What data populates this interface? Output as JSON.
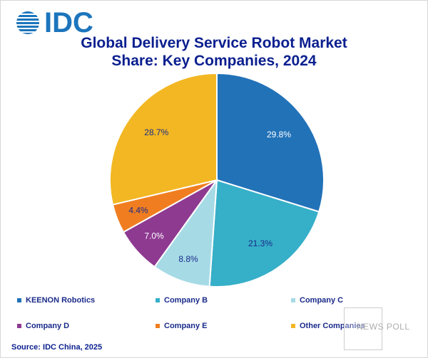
{
  "logo": {
    "text": "IDC"
  },
  "chart_data": {
    "type": "pie",
    "title_lines": [
      "Global Delivery Service Robot Market",
      "Share: Key Companies, 2024"
    ],
    "categories": [
      "KEENON Robotics",
      "Company B",
      "Company C",
      "Company D",
      "Company E",
      "Other Companies"
    ],
    "values": [
      29.8,
      21.3,
      8.8,
      7.0,
      4.4,
      28.7
    ],
    "labels": [
      "29.8%",
      "21.3%",
      "8.8%",
      "7.0%",
      "4.4%",
      "28.7%"
    ],
    "colors": [
      "#2272b8",
      "#36afc8",
      "#a6dbe6",
      "#8e3a91",
      "#f07e20",
      "#f2b722"
    ],
    "label_colors": [
      "#ffffff",
      "#1a2a8a",
      "#1a2a8a",
      "#ffffff",
      "#1a2a8a",
      "#1a2a8a"
    ],
    "start_angle": "top",
    "direction": "clockwise",
    "legend_position": "bottom"
  },
  "source": "Source: IDC China, 2025",
  "watermark": "NEWS POLL"
}
